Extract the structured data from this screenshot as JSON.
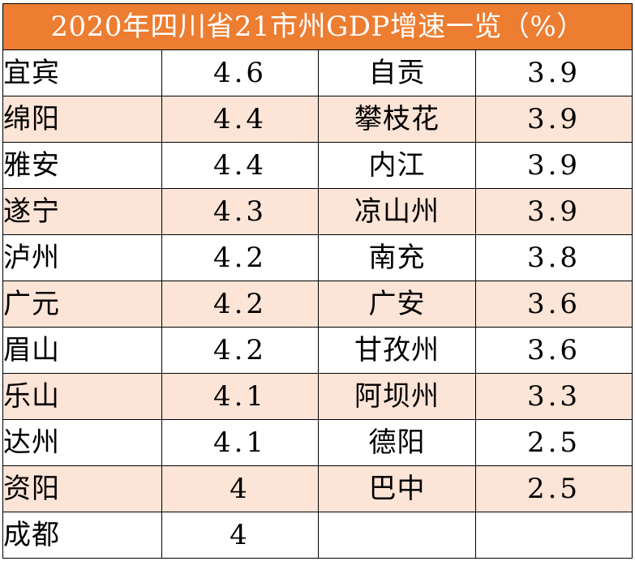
{
  "title": "2020年四川省21市州GDP增速一览（%）",
  "colors": {
    "header_bg": "#ed7d31",
    "header_text": "#ffffff",
    "stripe_bg": "#fce4d6",
    "border": "#000000"
  },
  "rows": [
    {
      "left_city": "宜宾",
      "left_value": "4.6",
      "right_city": "自贡",
      "right_value": "3.9"
    },
    {
      "left_city": "绵阳",
      "left_value": "4.4",
      "right_city": "攀枝花",
      "right_value": "3.9"
    },
    {
      "left_city": "雅安",
      "left_value": "4.4",
      "right_city": "内江",
      "right_value": "3.9"
    },
    {
      "left_city": "遂宁",
      "left_value": "4.3",
      "right_city": "凉山州",
      "right_value": "3.9"
    },
    {
      "left_city": "泸州",
      "left_value": "4.2",
      "right_city": "南充",
      "right_value": "3.8"
    },
    {
      "left_city": "广元",
      "left_value": "4.2",
      "right_city": "广安",
      "right_value": "3.6"
    },
    {
      "left_city": "眉山",
      "left_value": "4.2",
      "right_city": "甘孜州",
      "right_value": "3.6"
    },
    {
      "left_city": "乐山",
      "left_value": "4.1",
      "right_city": "阿坝州",
      "right_value": "3.3"
    },
    {
      "left_city": "达州",
      "left_value": "4.1",
      "right_city": "德阳",
      "right_value": "2.5"
    },
    {
      "left_city": "资阳",
      "left_value": "4",
      "right_city": "巴中",
      "right_value": "2.5"
    },
    {
      "left_city": "成都",
      "left_value": "4",
      "right_city": "",
      "right_value": ""
    }
  ]
}
